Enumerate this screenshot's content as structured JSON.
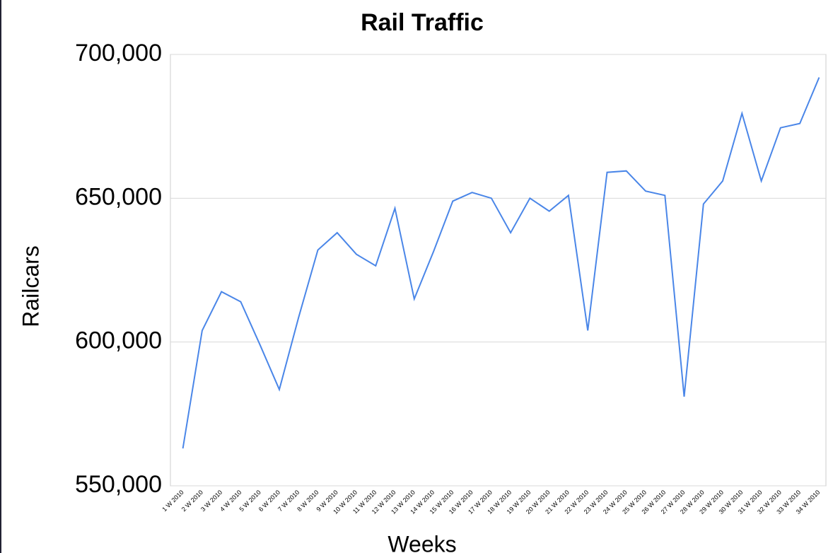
{
  "chart_data": {
    "type": "line",
    "title": "Rail Traffic",
    "x_label": "Weeks",
    "y_label": "Railcars",
    "categories": [
      "1 W 2010",
      "2 W 2010",
      "3 W 2010",
      "4 W 2010",
      "5 W 2010",
      "6 W 2010",
      "7 W 2010",
      "8 W 2010",
      "9 W 2010",
      "10 W 2010",
      "11 W 2010",
      "12 W 2010",
      "13 W 2010",
      "14 W 2010",
      "15 W 2010",
      "16 W 2010",
      "17 W 2010",
      "18 W 2010",
      "19 W 2010",
      "20 W 2010",
      "21 W 2010",
      "22 W 2010",
      "23 W 2010",
      "24 W 2010",
      "25 W 2010",
      "26 W 2010",
      "27 W 2010",
      "28 W 2010",
      "29 W 2010",
      "30 W 2010",
      "31 W 2010",
      "32 W 2010",
      "33 W 2010",
      "34 W 2010"
    ],
    "series": [
      {
        "name": "Railcars",
        "color": "#4a86e8",
        "values": [
          563000,
          604000,
          617500,
          614000,
          599000,
          583500,
          608500,
          632000,
          638000,
          630500,
          626500,
          646500,
          615000,
          631500,
          649000,
          652000,
          650000,
          638000,
          650000,
          645500,
          651000,
          604000,
          659000,
          659500,
          652500,
          651000,
          581000,
          648000,
          656000,
          679500,
          656000,
          674500,
          676000,
          692000
        ]
      }
    ],
    "ylim": [
      550000,
      700000
    ],
    "yticks": [
      {
        "value": 550000,
        "label": "550,000"
      },
      {
        "value": 600000,
        "label": "600,000"
      },
      {
        "value": 650000,
        "label": "650,000"
      },
      {
        "value": 700000,
        "label": "700,000"
      }
    ],
    "grid": true
  }
}
